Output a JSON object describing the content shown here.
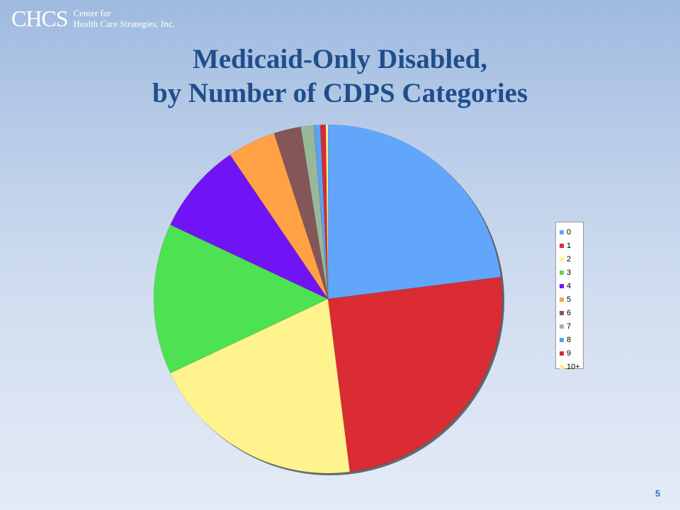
{
  "logo": {
    "mark": "CHCS",
    "line1": "Center for",
    "line2": "Health Care Strategies, Inc."
  },
  "slide": {
    "title_line1": "Medicaid-Only Disabled,",
    "title_line2": "by Number of CDPS Categories",
    "page_number": "5"
  },
  "chart_data": {
    "type": "pie",
    "title": "Medicaid-Only Disabled, by Number of CDPS Categories",
    "legend_position": "right",
    "categories": [
      "0",
      "1",
      "2",
      "3",
      "4",
      "5",
      "6",
      "7",
      "8",
      "9",
      "10+"
    ],
    "values": [
      23.0,
      25.0,
      20.0,
      14.0,
      8.5,
      4.5,
      2.5,
      1.2,
      0.6,
      0.5,
      0.2
    ],
    "colors": [
      "#62a6fb",
      "#da2c32",
      "#fff38e",
      "#4ee152",
      "#7114f5",
      "#ffa144",
      "#845657",
      "#99b89a",
      "#5aa2f2",
      "#d82b30",
      "#fff38e"
    ],
    "unit": "percent"
  }
}
